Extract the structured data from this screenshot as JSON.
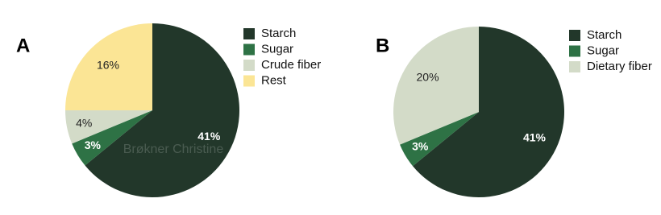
{
  "chart_data": [
    {
      "type": "pie",
      "panel": "A",
      "categories": [
        "Starch",
        "Sugar",
        "Crude fiber",
        "Rest"
      ],
      "values": [
        41,
        3,
        4,
        16
      ],
      "value_labels": [
        "41%",
        "3%",
        "4%",
        "16%"
      ],
      "colors": [
        "#22372a",
        "#2e7245",
        "#d3dbc8",
        "#fbe595"
      ],
      "watermark": "Brøkner Christine"
    },
    {
      "type": "pie",
      "panel": "B",
      "categories": [
        "Starch",
        "Sugar",
        "Dietary fiber"
      ],
      "values": [
        41,
        3,
        20
      ],
      "value_labels": [
        "41%",
        "3%",
        "20%"
      ],
      "colors": [
        "#22372a",
        "#2e7245",
        "#d3dbc8"
      ]
    }
  ]
}
